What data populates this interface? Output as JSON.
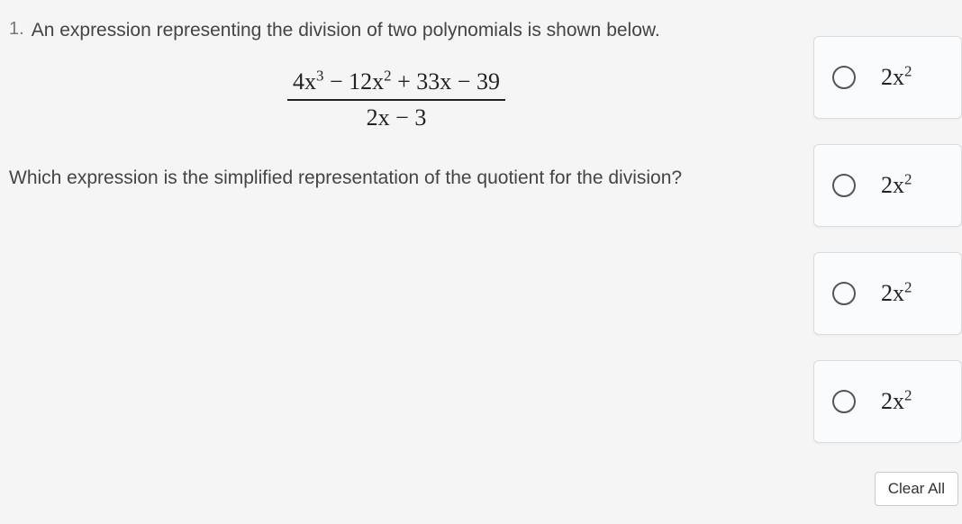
{
  "question": {
    "number": "1.",
    "prompt": "An expression representing the division of two polynomials is shown below.",
    "expression": {
      "numerator_html": "4x<sup>3</sup> − 12x<sup>2</sup> + 33x − 39",
      "denominator_html": "2x − 3"
    },
    "subprompt": "Which expression is the simplified representation of the quotient for the division?"
  },
  "answers": {
    "options": [
      {
        "label_html": "2x<sup>2</sup>"
      },
      {
        "label_html": "2x<sup>2</sup>"
      },
      {
        "label_html": "2x<sup>2</sup>"
      },
      {
        "label_html": "2x<sup>2</sup>"
      }
    ]
  },
  "buttons": {
    "clear_all": "Clear All"
  },
  "style": {
    "page_bg": "#f5f5f6",
    "text_color": "#3a3a3a",
    "option_border": "#d9dcdf",
    "radio_border": "#555555"
  }
}
